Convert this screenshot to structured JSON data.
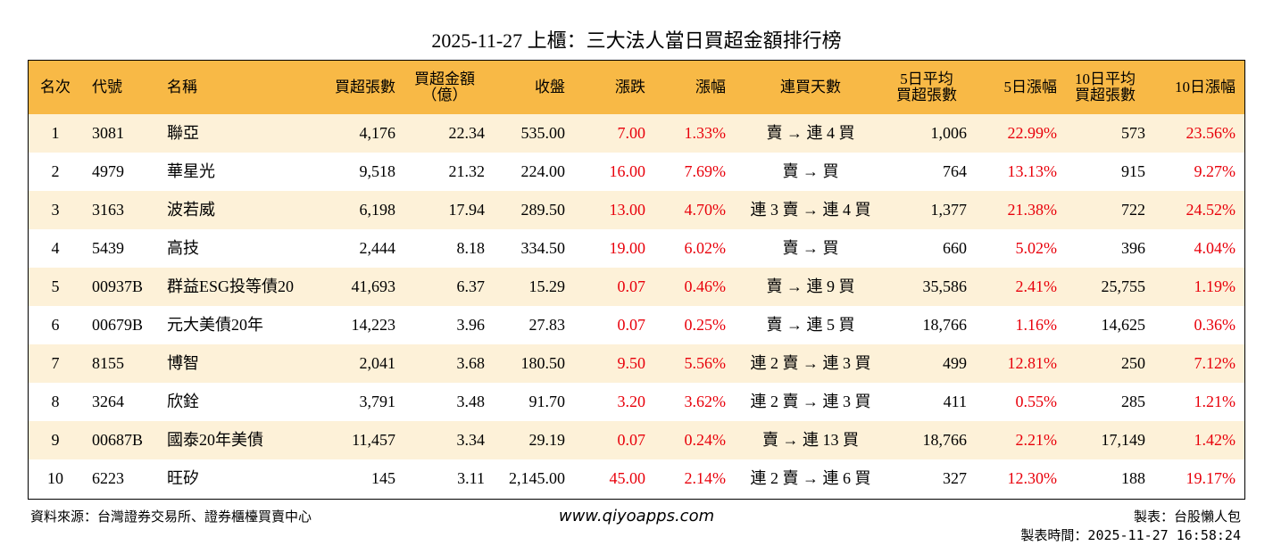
{
  "title": "2025-11-27 上櫃：三大法人當日買超金額排行榜",
  "table": {
    "headers": [
      "名次",
      "代號",
      "名稱",
      "買超張數",
      [
        "買超金額",
        "（億）"
      ],
      "收盤",
      "漲跌",
      "漲幅",
      "連買天數",
      [
        "5日平均",
        "買超張數"
      ],
      "5日漲幅",
      [
        "10日平均",
        "買超張數"
      ],
      "10日漲幅"
    ],
    "rows": [
      [
        "1",
        "3081",
        "聯亞",
        "4,176",
        "22.34",
        "535.00",
        "7.00",
        "1.33%",
        "賣 → 連 4 買",
        "1,006",
        "22.99%",
        "573",
        "23.56%"
      ],
      [
        "2",
        "4979",
        "華星光",
        "9,518",
        "21.32",
        "224.00",
        "16.00",
        "7.69%",
        "賣 → 買",
        "764",
        "13.13%",
        "915",
        "9.27%"
      ],
      [
        "3",
        "3163",
        "波若威",
        "6,198",
        "17.94",
        "289.50",
        "13.00",
        "4.70%",
        "連 3 賣 → 連 4 買",
        "1,377",
        "21.38%",
        "722",
        "24.52%"
      ],
      [
        "4",
        "5439",
        "高技",
        "2,444",
        "8.18",
        "334.50",
        "19.00",
        "6.02%",
        "賣 → 買",
        "660",
        "5.02%",
        "396",
        "4.04%"
      ],
      [
        "5",
        "00937B",
        "群益ESG投等債20",
        "41,693",
        "6.37",
        "15.29",
        "0.07",
        "0.46%",
        "賣 → 連 9 買",
        "35,586",
        "2.41%",
        "25,755",
        "1.19%"
      ],
      [
        "6",
        "00679B",
        "元大美債20年",
        "14,223",
        "3.96",
        "27.83",
        "0.07",
        "0.25%",
        "賣 → 連 5 買",
        "18,766",
        "1.16%",
        "14,625",
        "0.36%"
      ],
      [
        "7",
        "8155",
        "博智",
        "2,041",
        "3.68",
        "180.50",
        "9.50",
        "5.56%",
        "連 2 賣 → 連 3 買",
        "499",
        "12.81%",
        "250",
        "7.12%"
      ],
      [
        "8",
        "3264",
        "欣銓",
        "3,791",
        "3.48",
        "91.70",
        "3.20",
        "3.62%",
        "連 2 賣 → 連 3 買",
        "411",
        "0.55%",
        "285",
        "1.21%"
      ],
      [
        "9",
        "00687B",
        "國泰20年美債",
        "11,457",
        "3.34",
        "29.19",
        "0.07",
        "0.24%",
        "賣 → 連 13 買",
        "18,766",
        "2.21%",
        "17,149",
        "1.42%"
      ],
      [
        "10",
        "6223",
        "旺矽",
        "145",
        "3.11",
        "2,145.00",
        "45.00",
        "2.14%",
        "連 2 賣 → 連 6 買",
        "327",
        "12.30%",
        "188",
        "19.17%"
      ]
    ]
  },
  "footer": {
    "source": "資料來源：台灣證券交易所、證券櫃檯買賣中心",
    "website": "www.qiyoapps.com",
    "author": "製表：台股懶人包",
    "time": "製表時間：2025-11-27 16:58:24"
  }
}
